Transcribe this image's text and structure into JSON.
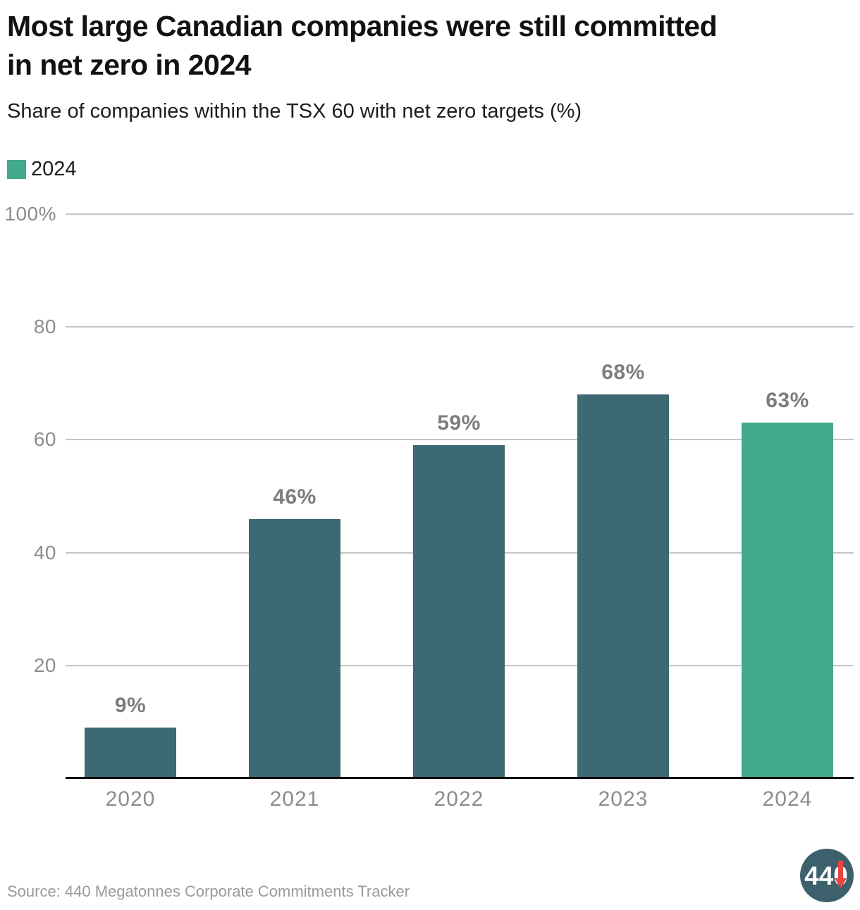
{
  "header": {
    "title": "Most large Canadian companies were still committed in net zero in 2024",
    "subtitle": "Share of companies within the TSX 60 with net zero targets (%)"
  },
  "legend": {
    "label": "2024",
    "color": "#43a98c"
  },
  "chart_data": {
    "type": "bar",
    "title": "Most large Canadian companies were still committed in net zero in 2024",
    "subtitle": "Share of companies within the TSX 60 with net zero targets (%)",
    "categories": [
      "2020",
      "2021",
      "2022",
      "2023",
      "2024"
    ],
    "values": [
      9,
      46,
      59,
      68,
      63
    ],
    "value_labels": [
      "9%",
      "46%",
      "59%",
      "68%",
      "63%"
    ],
    "bar_colors": [
      "#3d6a72",
      "#3d6a72",
      "#3d6a72",
      "#3d6a72",
      "#43a98c"
    ],
    "xlabel": "",
    "ylabel": "",
    "ylim": [
      0,
      100
    ],
    "yticks": [
      20,
      40,
      60,
      80,
      100
    ],
    "ytick_labels": [
      "20",
      "40",
      "60",
      "80",
      "100%"
    ],
    "grid": "horizontal",
    "legend_entries": [
      {
        "label": "2024",
        "color": "#43a98c"
      }
    ],
    "legend_position": "top-left"
  },
  "footer": {
    "source": "Source: 440 Megatonnes Corporate Commitments Tracker",
    "logo_text": "440"
  },
  "colors": {
    "bar_teal": "#3d6a72",
    "bar_green": "#43a98c",
    "grid_line": "#c4c4c4",
    "axis_line": "#000000",
    "tick_label": "#8c8c8c",
    "value_label": "#7d7d7d",
    "title_text": "#121212",
    "source_text": "#9a9a9a",
    "logo_circle": "#3c616c",
    "logo_arrow": "#e8463f"
  }
}
